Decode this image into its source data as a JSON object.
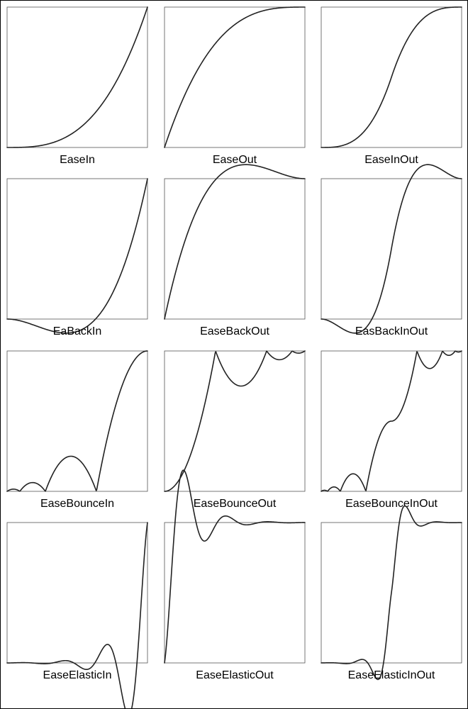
{
  "panels": [
    {
      "label": "EaseIn",
      "fn": "in"
    },
    {
      "label": "EaseOut",
      "fn": "out"
    },
    {
      "label": "EaseInOut",
      "fn": "inout"
    },
    {
      "label": "EaBackIn",
      "fn": "backIn"
    },
    {
      "label": "EaseBackOut",
      "fn": "backOut"
    },
    {
      "label": "EasBackInOut",
      "fn": "backInOut"
    },
    {
      "label": "EaseBounceIn",
      "fn": "bounceIn"
    },
    {
      "label": "EaseBounceOut",
      "fn": "bounceOut"
    },
    {
      "label": "EaseBounceInOut",
      "fn": "bounceInOut"
    },
    {
      "label": "EaseElasticIn",
      "fn": "elasticIn"
    },
    {
      "label": "EaseElasticOut",
      "fn": "elasticOut"
    },
    {
      "label": "EaseElasticInOut",
      "fn": "elasticInOut"
    }
  ],
  "colors": {
    "curve": "#222222",
    "frame": "#555555",
    "background": "#ffffff"
  }
}
